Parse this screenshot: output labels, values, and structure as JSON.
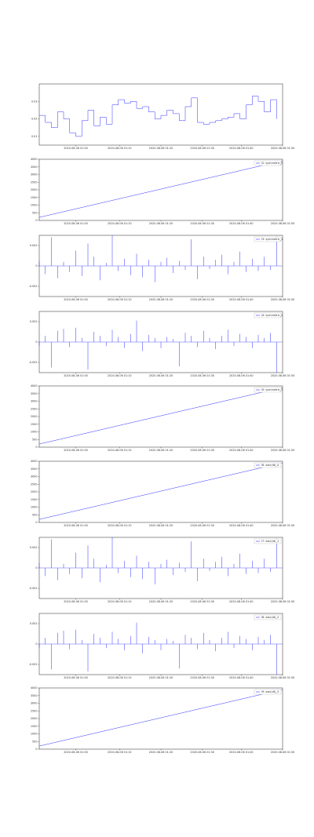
{
  "chart_data": [
    {
      "type": "step",
      "color": "#3333ff",
      "x": [
        0,
        2.5,
        5,
        7.5,
        10,
        12.5,
        15,
        17.5,
        20,
        22.5,
        25,
        27.5,
        30,
        32.5,
        35,
        37.5,
        40,
        42.5,
        45,
        47.5,
        50,
        52.5,
        55,
        57.5,
        60,
        62.5,
        65,
        67.5,
        70,
        72.5,
        75,
        77.5,
        80,
        82.5,
        85,
        87.5,
        90,
        92.5,
        95,
        97.5
      ],
      "values": [
        0.022,
        0.018,
        0.015,
        0.024,
        0.02,
        0.012,
        0.01,
        0.019,
        0.025,
        0.016,
        0.021,
        0.017,
        0.028,
        0.031,
        0.029,
        0.03,
        0.026,
        0.027,
        0.024,
        0.02,
        0.022,
        0.025,
        0.023,
        0.019,
        0.027,
        0.032,
        0.018,
        0.017,
        0.018,
        0.019,
        0.02,
        0.021,
        0.023,
        0.02,
        0.028,
        0.033,
        0.03,
        0.024,
        0.031,
        0.02
      ],
      "xlim": [
        0,
        100
      ],
      "ylim": [
        0.005,
        0.04
      ],
      "yticks": [
        0.01,
        0.02,
        0.03
      ],
      "xticks": [
        {
          "value": 15,
          "label": "2020-08-06 01:00"
        },
        {
          "value": 33,
          "label": "2020-08-06 01:10"
        },
        {
          "value": 50,
          "label": "2020-08-06 01:20"
        },
        {
          "value": 67,
          "label": "2020-08-06 01:30"
        },
        {
          "value": 83,
          "label": "2020-08-06 01:40"
        },
        {
          "value": 100,
          "label": "2020-08-06 01:50"
        }
      ]
    },
    {
      "type": "line",
      "color": "#3333ff",
      "legend": "I2: symmetric_0",
      "x": [
        0,
        100
      ],
      "values": [
        200,
        3900
      ],
      "xlim": [
        0,
        100
      ],
      "ylim": [
        0,
        4000
      ],
      "yticks": [
        0,
        500,
        1000,
        1500,
        2000,
        2500,
        3000,
        3500,
        4000
      ],
      "xticks": [
        {
          "value": 15,
          "label": "2020-08-06 01:00"
        },
        {
          "value": 33,
          "label": "2020-08-06 01:10"
        },
        {
          "value": 50,
          "label": "2020-08-06 01:20"
        },
        {
          "value": 67,
          "label": "2020-08-06 01:30"
        },
        {
          "value": 83,
          "label": "2020-08-06 01:40"
        },
        {
          "value": 100,
          "label": "2020-08-06 01:50"
        }
      ]
    },
    {
      "type": "spike",
      "color": "#3333ff",
      "legend": "I3: symmetric_1",
      "x": [
        0,
        2.5,
        5,
        7.5,
        10,
        12.5,
        15,
        17.5,
        20,
        22.5,
        25,
        27.5,
        30,
        32.5,
        35,
        37.5,
        40,
        42.5,
        45,
        47.5,
        50,
        52.5,
        55,
        57.5,
        60,
        62.5,
        65,
        67.5,
        70,
        72.5,
        75,
        77.5,
        80,
        82.5,
        85,
        87.5,
        90,
        92.5,
        95,
        97.5
      ],
      "values": [
        0.0005,
        -0.0008,
        0.0028,
        -0.0012,
        0.0004,
        -0.0006,
        0.0015,
        -0.001,
        0.0022,
        0.0009,
        -0.0014,
        0.0003,
        0.003,
        -0.0005,
        0.0007,
        -0.0009,
        0.0012,
        -0.0011,
        0.0006,
        -0.0016,
        0.0004,
        0.0008,
        -0.0007,
        0.0005,
        -0.0004,
        0.0026,
        -0.0013,
        0.0009,
        -0.0003,
        0.0006,
        0.0011,
        -0.0008,
        0.0004,
        0.0014,
        -0.0006,
        0.0007,
        -0.0005,
        0.0009,
        -0.0004,
        0.0029
      ],
      "xlim": [
        0,
        100
      ],
      "ylim": [
        -0.003,
        0.003
      ],
      "yticks": [
        -0.002,
        0,
        0.002
      ],
      "xticks": [
        {
          "value": 15,
          "label": "2020-08-06 01:00"
        },
        {
          "value": 33,
          "label": "2020-08-06 01:10"
        },
        {
          "value": 50,
          "label": "2020-08-06 01:20"
        },
        {
          "value": 67,
          "label": "2020-08-06 01:30"
        },
        {
          "value": 83,
          "label": "2020-08-06 01:40"
        },
        {
          "value": 100,
          "label": "2020-08-06 01:50"
        }
      ]
    },
    {
      "type": "spike",
      "color": "#3333ff",
      "legend": "I4: symmetric_2",
      "x": [
        0,
        2.5,
        5,
        7.5,
        10,
        12.5,
        15,
        17.5,
        20,
        22.5,
        25,
        27.5,
        30,
        32.5,
        35,
        37.5,
        40,
        42.5,
        45,
        47.5,
        50,
        52.5,
        55,
        57.5,
        60,
        62.5,
        65,
        67.5,
        70,
        72.5,
        75,
        77.5,
        80,
        82.5,
        85,
        87.5,
        90,
        92.5,
        95,
        97.5
      ],
      "values": [
        -0.0004,
        0.0006,
        -0.0025,
        0.0011,
        0.0013,
        -0.0005,
        0.0014,
        0.0004,
        -0.0027,
        0.001,
        0.0006,
        -0.0004,
        0.0012,
        0.0005,
        -0.0006,
        0.0008,
        0.0021,
        -0.0009,
        0.0007,
        0.0004,
        -0.0006,
        0.0005,
        0.0003,
        -0.0024,
        0.0009,
        0.0006,
        -0.0005,
        0.0011,
        0.0004,
        -0.0007,
        0.0006,
        0.0012,
        -0.0004,
        0.0008,
        0.0005,
        -0.0006,
        0.0007,
        0.0004,
        0.0009,
        -0.003
      ],
      "xlim": [
        0,
        100
      ],
      "ylim": [
        -0.003,
        0.003
      ],
      "yticks": [
        -0.002,
        0,
        0.002
      ],
      "xticks": [
        {
          "value": 15,
          "label": "2020-08-06 01:00"
        },
        {
          "value": 33,
          "label": "2020-08-06 01:10"
        },
        {
          "value": 50,
          "label": "2020-08-06 01:20"
        },
        {
          "value": 67,
          "label": "2020-08-06 01:30"
        },
        {
          "value": 83,
          "label": "2020-08-06 01:40"
        },
        {
          "value": 100,
          "label": "2020-08-06 01:50"
        }
      ]
    },
    {
      "type": "line",
      "color": "#3333ff",
      "legend": "I5: symmetric_3",
      "x": [
        0,
        100
      ],
      "values": [
        200,
        3900
      ],
      "xlim": [
        0,
        100
      ],
      "ylim": [
        0,
        4000
      ],
      "yticks": [
        0,
        500,
        1000,
        1500,
        2000,
        2500,
        3000,
        3500,
        4000
      ],
      "xticks": [
        {
          "value": 15,
          "label": "2020-08-06 01:00"
        },
        {
          "value": 33,
          "label": "2020-08-06 01:10"
        },
        {
          "value": 50,
          "label": "2020-08-06 01:20"
        },
        {
          "value": 67,
          "label": "2020-08-06 01:30"
        },
        {
          "value": 83,
          "label": "2020-08-06 01:40"
        },
        {
          "value": 100,
          "label": "2020-08-06 01:50"
        }
      ]
    },
    {
      "type": "line",
      "color": "#3333ff",
      "legend": "I6: asin(dt)_0",
      "x": [
        0,
        100
      ],
      "values": [
        200,
        3900
      ],
      "xlim": [
        0,
        100
      ],
      "ylim": [
        0,
        4000
      ],
      "yticks": [
        0,
        500,
        1000,
        1500,
        2000,
        2500,
        3000,
        3500,
        4000
      ],
      "xticks": [
        {
          "value": 15,
          "label": "2020-08-06 01:00"
        },
        {
          "value": 33,
          "label": "2020-08-06 01:10"
        },
        {
          "value": 50,
          "label": "2020-08-06 01:20"
        },
        {
          "value": 67,
          "label": "2020-08-06 01:30"
        },
        {
          "value": 83,
          "label": "2020-08-06 01:40"
        },
        {
          "value": 100,
          "label": "2020-08-06 01:50"
        }
      ]
    },
    {
      "type": "spike",
      "color": "#3333ff",
      "legend": "I7: asin(dt)_1",
      "x": [
        0,
        2.5,
        5,
        7.5,
        10,
        12.5,
        15,
        17.5,
        20,
        22.5,
        25,
        27.5,
        30,
        32.5,
        35,
        37.5,
        40,
        42.5,
        45,
        47.5,
        50,
        52.5,
        55,
        57.5,
        60,
        62.5,
        65,
        67.5,
        70,
        72.5,
        75,
        77.5,
        80,
        82.5,
        85,
        87.5,
        90,
        92.5,
        95,
        97.5
      ],
      "values": [
        0.0005,
        -0.0008,
        0.0028,
        -0.0012,
        0.0004,
        -0.0006,
        0.0015,
        -0.001,
        0.0022,
        0.0009,
        -0.0014,
        0.0003,
        0.003,
        -0.0005,
        0.0007,
        -0.0009,
        0.0012,
        -0.0011,
        0.0006,
        -0.0016,
        0.0004,
        0.0008,
        -0.0007,
        0.0005,
        -0.0004,
        0.0026,
        -0.0013,
        0.0009,
        -0.0003,
        0.0006,
        0.0011,
        -0.0008,
        0.0004,
        0.0014,
        -0.0006,
        0.0007,
        -0.0005,
        0.0009,
        -0.0004,
        0.0029
      ],
      "xlim": [
        0,
        100
      ],
      "ylim": [
        -0.003,
        0.003
      ],
      "yticks": [
        -0.002,
        0,
        0.002
      ],
      "xticks": [
        {
          "value": 15,
          "label": "2020-08-06 01:00"
        },
        {
          "value": 33,
          "label": "2020-08-06 01:10"
        },
        {
          "value": 50,
          "label": "2020-08-06 01:20"
        },
        {
          "value": 67,
          "label": "2020-08-06 01:30"
        },
        {
          "value": 83,
          "label": "2020-08-06 01:40"
        },
        {
          "value": 100,
          "label": "2020-08-06 01:50"
        }
      ]
    },
    {
      "type": "spike",
      "color": "#3333ff",
      "legend": "I8: asin(dt)_2",
      "x": [
        0,
        2.5,
        5,
        7.5,
        10,
        12.5,
        15,
        17.5,
        20,
        22.5,
        25,
        27.5,
        30,
        32.5,
        35,
        37.5,
        40,
        42.5,
        45,
        47.5,
        50,
        52.5,
        55,
        57.5,
        60,
        62.5,
        65,
        67.5,
        70,
        72.5,
        75,
        77.5,
        80,
        82.5,
        85,
        87.5,
        90,
        92.5,
        95,
        97.5
      ],
      "values": [
        -0.0004,
        0.0006,
        -0.0025,
        0.0011,
        0.0013,
        -0.0005,
        0.0014,
        0.0004,
        -0.0027,
        0.001,
        0.0006,
        -0.0004,
        0.0012,
        0.0005,
        -0.0006,
        0.0008,
        0.0021,
        -0.0009,
        0.0007,
        0.0004,
        -0.0006,
        0.0005,
        0.0003,
        -0.0024,
        0.0009,
        0.0006,
        -0.0005,
        0.0011,
        0.0004,
        -0.0007,
        0.0006,
        0.0012,
        -0.0004,
        0.0008,
        0.0005,
        -0.0006,
        0.0007,
        0.0004,
        0.0009,
        -0.003
      ],
      "xlim": [
        0,
        100
      ],
      "ylim": [
        -0.003,
        0.003
      ],
      "yticks": [
        -0.002,
        0,
        0.002
      ],
      "xticks": [
        {
          "value": 15,
          "label": "2020-08-06 01:00"
        },
        {
          "value": 33,
          "label": "2020-08-06 01:10"
        },
        {
          "value": 50,
          "label": "2020-08-06 01:20"
        },
        {
          "value": 67,
          "label": "2020-08-06 01:30"
        },
        {
          "value": 83,
          "label": "2020-08-06 01:40"
        },
        {
          "value": 100,
          "label": "2020-08-06 01:50"
        }
      ]
    },
    {
      "type": "line",
      "color": "#3333ff",
      "legend": "I9: asin(dt)_3",
      "x": [
        0,
        100
      ],
      "values": [
        200,
        3900
      ],
      "xlim": [
        0,
        100
      ],
      "ylim": [
        0,
        4000
      ],
      "yticks": [
        0,
        500,
        1000,
        1500,
        2000,
        2500,
        3000,
        3500,
        4000
      ],
      "xticks": [
        {
          "value": 15,
          "label": "2020-08-06 01:00"
        },
        {
          "value": 33,
          "label": "2020-08-06 01:10"
        },
        {
          "value": 50,
          "label": "2020-08-06 01:20"
        },
        {
          "value": 67,
          "label": "2020-08-06 01:30"
        },
        {
          "value": 83,
          "label": "2020-08-06 01:40"
        },
        {
          "value": 100,
          "label": "2020-08-06 01:50"
        }
      ]
    }
  ]
}
